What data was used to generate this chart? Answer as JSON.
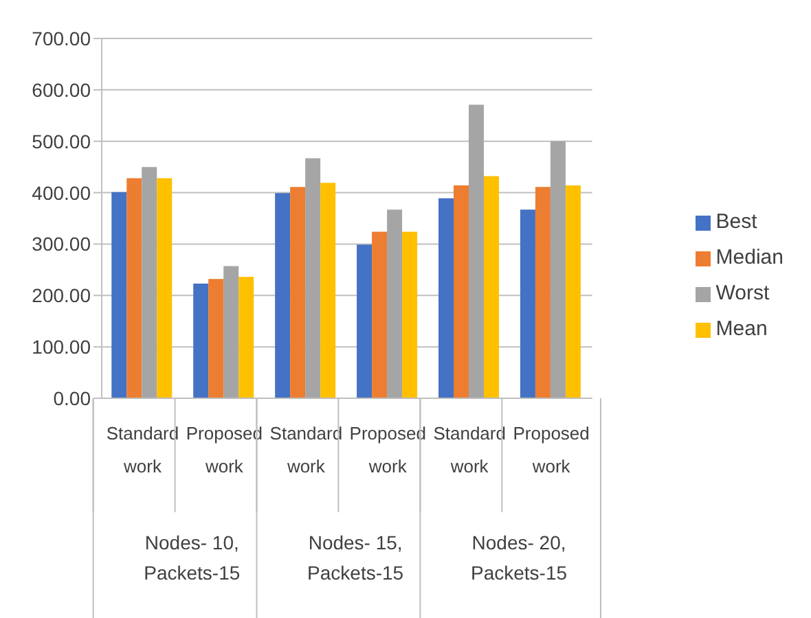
{
  "chart_data": {
    "type": "bar",
    "categories": [
      "Standard work",
      "Proposed work",
      "Standard work",
      "Proposed work",
      "Standard work",
      "Proposed work"
    ],
    "series": [
      {
        "name": "Best",
        "color": "#4472c4",
        "values": [
          401,
          223,
          399,
          299,
          389,
          367
        ]
      },
      {
        "name": "Median",
        "color": "#ed7d31",
        "values": [
          428,
          232,
          411,
          324,
          414,
          411
        ]
      },
      {
        "name": "Worst",
        "color": "#a5a5a5",
        "values": [
          450,
          257,
          467,
          367,
          571,
          500
        ]
      },
      {
        "name": "Mean",
        "color": "#ffc000",
        "values": [
          428,
          236,
          419,
          324,
          432,
          414
        ]
      }
    ],
    "annotations": [
      "Nodes- 10, Packets-15",
      "Nodes- 15, Packets-15",
      "Nodes- 20, Packets-15"
    ],
    "ylim": [
      0,
      700
    ],
    "yticks": [
      {
        "value": 0,
        "label": "0.00"
      },
      {
        "value": 100,
        "label": "100.00"
      },
      {
        "value": 200,
        "label": "200.00"
      },
      {
        "value": 300,
        "label": "300.00"
      },
      {
        "value": 400,
        "label": "400.00"
      },
      {
        "value": 500,
        "label": "500.00"
      },
      {
        "value": 600,
        "label": "600.00"
      },
      {
        "value": 700,
        "label": "700.00"
      }
    ],
    "grid": "y",
    "legend": "right"
  }
}
